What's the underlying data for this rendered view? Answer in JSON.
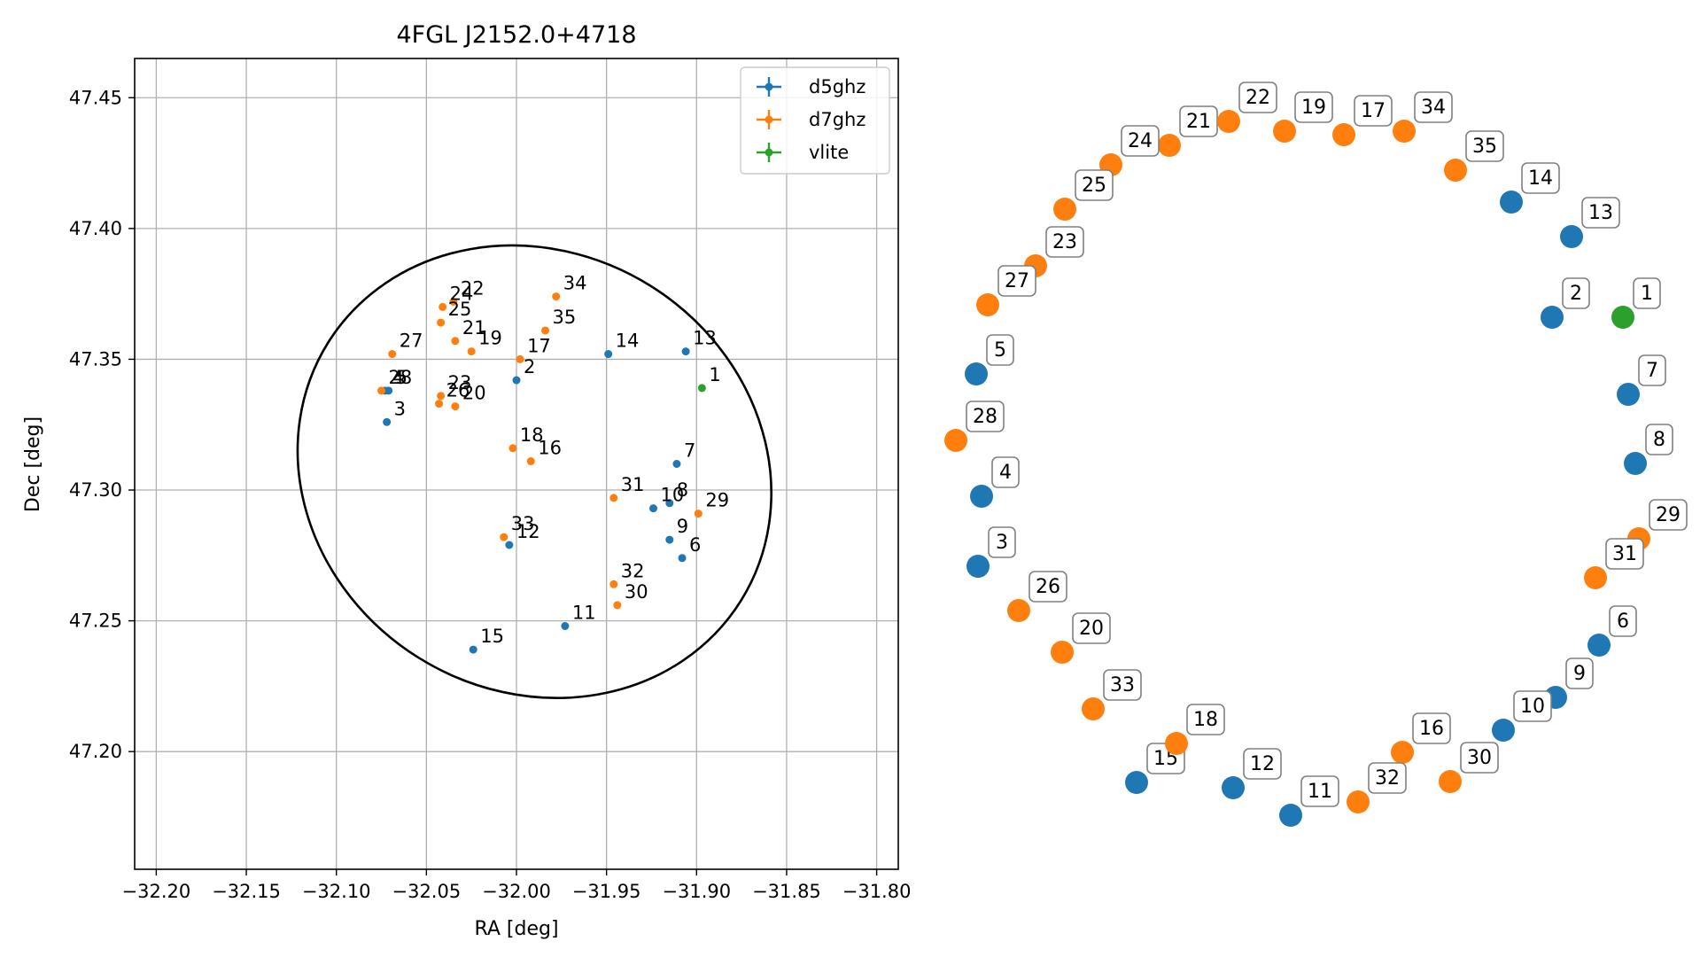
{
  "colors": {
    "d5ghz": "#1f77b4",
    "d7ghz": "#ff7f0e",
    "vlite": "#2ca02c"
  },
  "chart_data": [
    {
      "type": "scatter",
      "title": "4FGL J2152.0+4718",
      "xlabel": "RA [deg]",
      "ylabel": "Dec [deg]",
      "xlim": [
        -32.212,
        -31.788
      ],
      "ylim": [
        47.155,
        47.465
      ],
      "xticks": [
        -32.2,
        -32.15,
        -32.1,
        -32.05,
        -32.0,
        -31.95,
        -31.9,
        -31.85,
        -31.8
      ],
      "xtick_labels": [
        "−32.20",
        "−32.15",
        "−32.10",
        "−32.05",
        "−32.00",
        "−31.95",
        "−31.90",
        "−31.85",
        "−31.80"
      ],
      "yticks": [
        47.2,
        47.25,
        47.3,
        47.35,
        47.4,
        47.45
      ],
      "ytick_labels": [
        "47.20",
        "47.25",
        "47.30",
        "47.35",
        "47.40",
        "47.45"
      ],
      "grid": true,
      "legend": {
        "position": "upper right",
        "entries": [
          {
            "label": "d5ghz",
            "series": "d5ghz"
          },
          {
            "label": "d7ghz",
            "series": "d7ghz"
          },
          {
            "label": "vlite",
            "series": "vlite"
          }
        ]
      },
      "ellipse": {
        "center": [
          -31.99,
          47.307
        ],
        "ra_extent": [
          -32.122,
          -31.859
        ],
        "dec_extent": [
          47.22,
          47.393
        ],
        "tilt_deg": 32
      },
      "series": [
        {
          "name": "d5ghz",
          "points": [
            {
              "id": "2",
              "ra": -32.0,
              "dec": 47.342
            },
            {
              "id": "3",
              "ra": -32.072,
              "dec": 47.326
            },
            {
              "id": "4",
              "ra": -32.073,
              "dec": 47.338
            },
            {
              "id": "5",
              "ra": -32.071,
              "dec": 47.338
            },
            {
              "id": "6",
              "ra": -31.908,
              "dec": 47.274
            },
            {
              "id": "7",
              "ra": -31.911,
              "dec": 47.31
            },
            {
              "id": "8",
              "ra": -31.915,
              "dec": 47.295
            },
            {
              "id": "9",
              "ra": -31.915,
              "dec": 47.281
            },
            {
              "id": "10",
              "ra": -31.924,
              "dec": 47.293
            },
            {
              "id": "11",
              "ra": -31.973,
              "dec": 47.248
            },
            {
              "id": "12",
              "ra": -32.004,
              "dec": 47.279
            },
            {
              "id": "13",
              "ra": -31.906,
              "dec": 47.353
            },
            {
              "id": "14",
              "ra": -31.949,
              "dec": 47.352
            },
            {
              "id": "15",
              "ra": -32.024,
              "dec": 47.239
            }
          ]
        },
        {
          "name": "d7ghz",
          "points": [
            {
              "id": "16",
              "ra": -31.992,
              "dec": 47.311
            },
            {
              "id": "17",
              "ra": -31.998,
              "dec": 47.35
            },
            {
              "id": "18",
              "ra": -32.002,
              "dec": 47.316
            },
            {
              "id": "19",
              "ra": -32.025,
              "dec": 47.353
            },
            {
              "id": "20",
              "ra": -32.034,
              "dec": 47.332
            },
            {
              "id": "21",
              "ra": -32.034,
              "dec": 47.357
            },
            {
              "id": "22",
              "ra": -32.035,
              "dec": 47.372
            },
            {
              "id": "23",
              "ra": -32.042,
              "dec": 47.336
            },
            {
              "id": "24",
              "ra": -32.041,
              "dec": 47.37
            },
            {
              "id": "25",
              "ra": -32.042,
              "dec": 47.364
            },
            {
              "id": "26",
              "ra": -32.043,
              "dec": 47.333
            },
            {
              "id": "27",
              "ra": -32.069,
              "dec": 47.352
            },
            {
              "id": "28",
              "ra": -32.075,
              "dec": 47.338
            },
            {
              "id": "29",
              "ra": -31.899,
              "dec": 47.291
            },
            {
              "id": "30",
              "ra": -31.944,
              "dec": 47.256
            },
            {
              "id": "31",
              "ra": -31.946,
              "dec": 47.297
            },
            {
              "id": "32",
              "ra": -31.946,
              "dec": 47.264
            },
            {
              "id": "33",
              "ra": -32.007,
              "dec": 47.282
            },
            {
              "id": "34",
              "ra": -31.978,
              "dec": 47.374
            },
            {
              "id": "35",
              "ra": -31.984,
              "dec": 47.361
            }
          ]
        },
        {
          "name": "vlite",
          "points": [
            {
              "id": "1",
              "ra": -31.897,
              "dec": 47.339
            }
          ]
        }
      ]
    },
    {
      "type": "scatter",
      "description_hint": "circular layout of source indices",
      "points": [
        {
          "id": "1",
          "series": "vlite"
        },
        {
          "id": "2",
          "series": "d5ghz"
        },
        {
          "id": "3",
          "series": "d5ghz"
        },
        {
          "id": "4",
          "series": "d5ghz"
        },
        {
          "id": "5",
          "series": "d5ghz"
        },
        {
          "id": "6",
          "series": "d5ghz"
        },
        {
          "id": "7",
          "series": "d5ghz"
        },
        {
          "id": "8",
          "series": "d5ghz"
        },
        {
          "id": "9",
          "series": "d5ghz"
        },
        {
          "id": "10",
          "series": "d5ghz"
        },
        {
          "id": "11",
          "series": "d5ghz"
        },
        {
          "id": "12",
          "series": "d5ghz"
        },
        {
          "id": "13",
          "series": "d5ghz"
        },
        {
          "id": "14",
          "series": "d5ghz"
        },
        {
          "id": "15",
          "series": "d5ghz"
        },
        {
          "id": "16",
          "series": "d7ghz"
        },
        {
          "id": "17",
          "series": "d7ghz"
        },
        {
          "id": "18",
          "series": "d7ghz"
        },
        {
          "id": "19",
          "series": "d7ghz"
        },
        {
          "id": "20",
          "series": "d7ghz"
        },
        {
          "id": "21",
          "series": "d7ghz"
        },
        {
          "id": "22",
          "series": "d7ghz"
        },
        {
          "id": "23",
          "series": "d7ghz"
        },
        {
          "id": "24",
          "series": "d7ghz"
        },
        {
          "id": "25",
          "series": "d7ghz"
        },
        {
          "id": "26",
          "series": "d7ghz"
        },
        {
          "id": "27",
          "series": "d7ghz"
        },
        {
          "id": "28",
          "series": "d7ghz"
        },
        {
          "id": "29",
          "series": "d7ghz"
        },
        {
          "id": "30",
          "series": "d7ghz"
        },
        {
          "id": "31",
          "series": "d7ghz"
        },
        {
          "id": "32",
          "series": "d7ghz"
        },
        {
          "id": "33",
          "series": "d7ghz"
        },
        {
          "id": "34",
          "series": "d7ghz"
        },
        {
          "id": "35",
          "series": "d7ghz"
        }
      ]
    }
  ]
}
